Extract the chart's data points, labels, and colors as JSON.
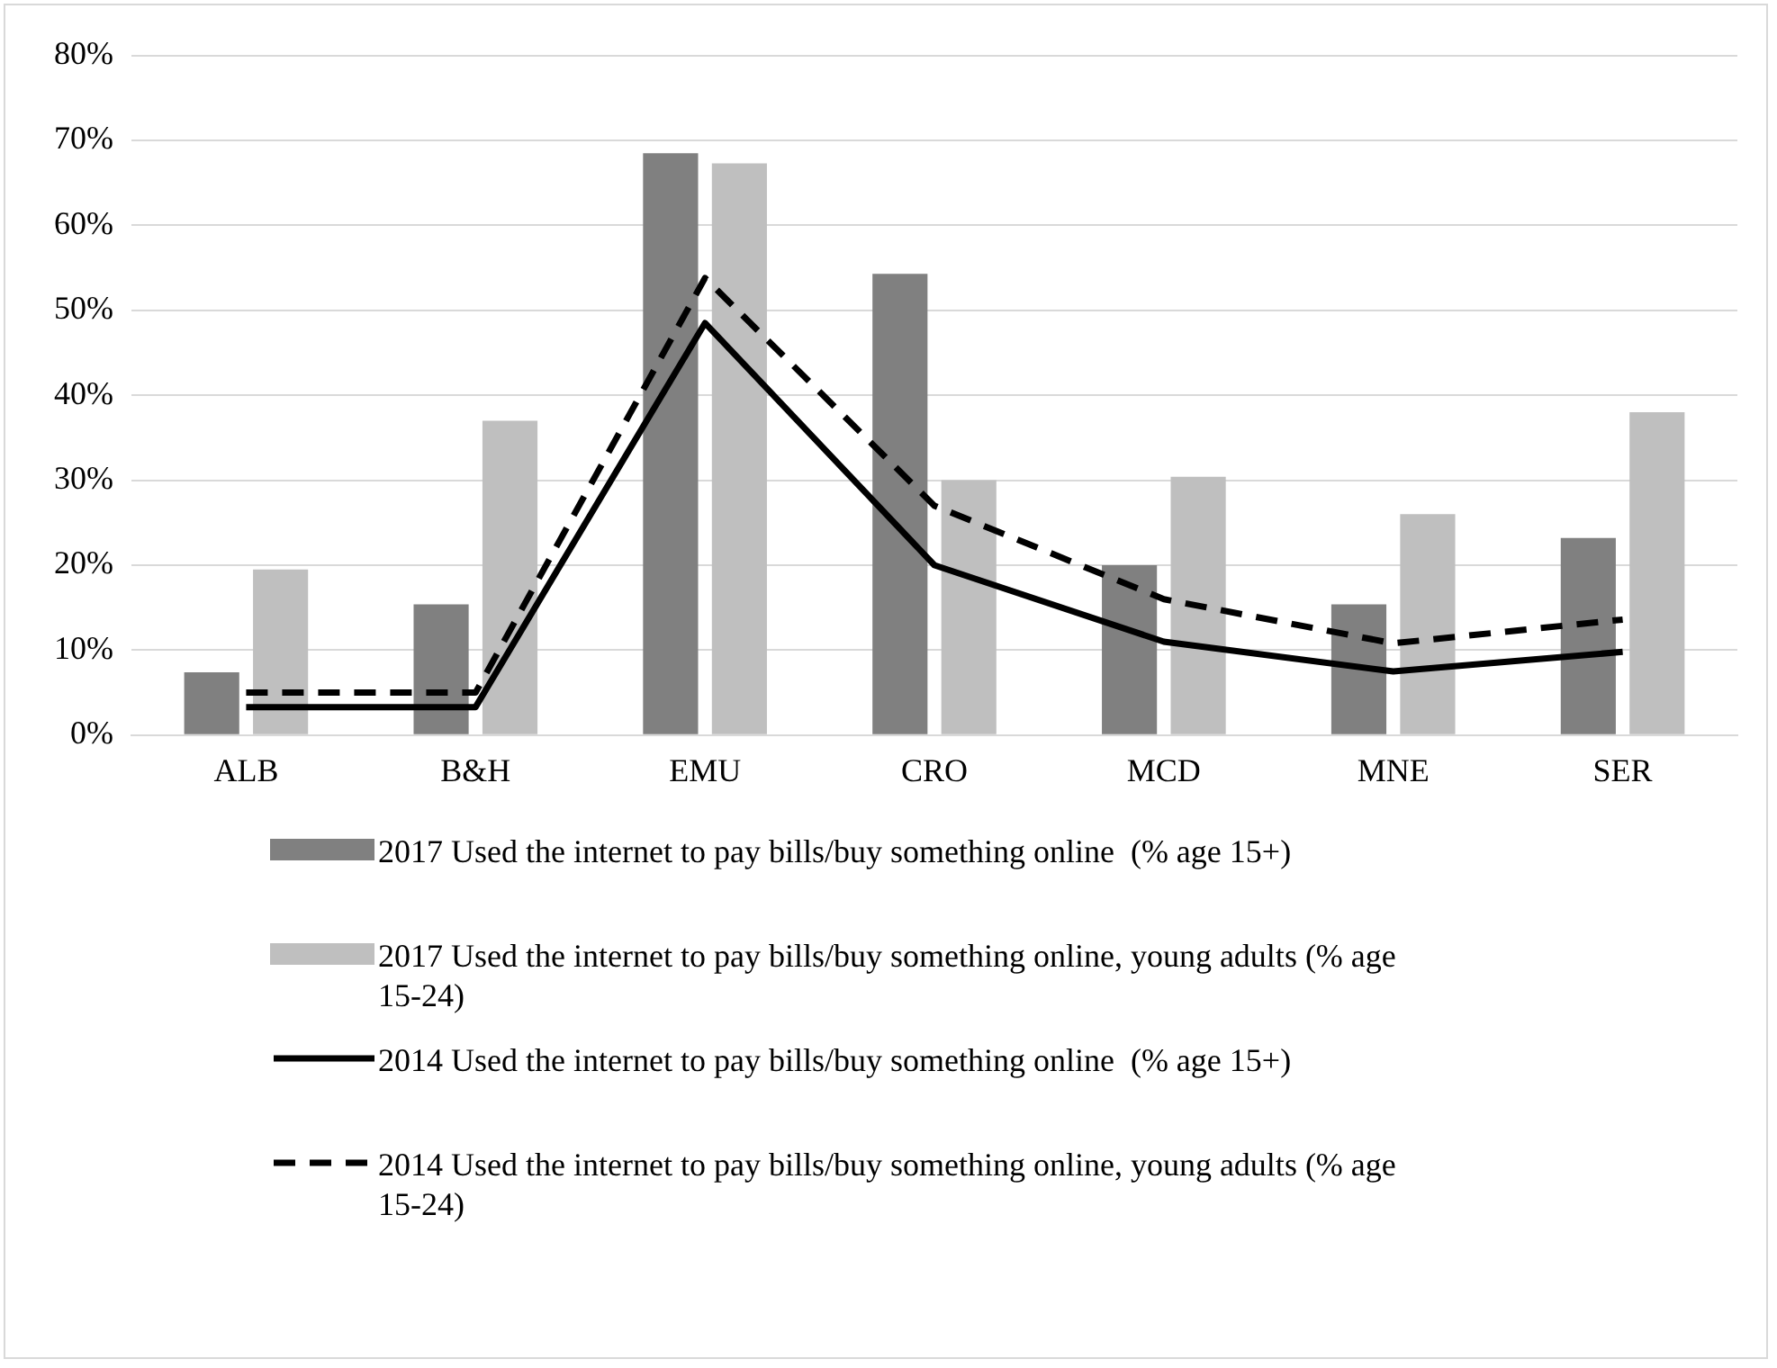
{
  "chart_data": {
    "type": "bar",
    "categories": [
      "ALB",
      "B&H",
      "EMU",
      "CRO",
      "MCD",
      "MNE",
      "SER"
    ],
    "series": [
      {
        "name": "2017 Used the internet to pay bills/buy something online  (% age 15+)",
        "color": "#808080",
        "values": [
          7.4,
          15.4,
          68.5,
          54.3,
          20,
          15.4,
          23.2
        ]
      },
      {
        "name": "2017 Used the internet to pay bills/buy something online, young adults (% age 15-24)",
        "color": "#bfbfbf",
        "values": [
          19.5,
          37,
          67.3,
          30,
          30.4,
          26,
          38
        ]
      },
      {
        "name": "2014 Used the internet to pay bills/buy something online  (% age 15+)",
        "type": "line",
        "color": "#000000",
        "line_style": "solid",
        "values": [
          3.3,
          3.3,
          48.5,
          20,
          11,
          7.5,
          9.8
        ]
      },
      {
        "name": "2014 Used the internet to pay bills/buy something online, young adults (% age 15-24)",
        "type": "line",
        "color": "#000000",
        "line_style": "dashed",
        "values": [
          5,
          5,
          53.8,
          27,
          16,
          10.8,
          13.6
        ]
      }
    ],
    "ylim": [
      0,
      80
    ],
    "yticks": [
      {
        "value": 0,
        "label": "0%"
      },
      {
        "value": 10,
        "label": "10%"
      },
      {
        "value": 20,
        "label": "20%"
      },
      {
        "value": 30,
        "label": "30%"
      },
      {
        "value": 40,
        "label": "40%"
      },
      {
        "value": 50,
        "label": "50%"
      },
      {
        "value": 60,
        "label": "60%"
      },
      {
        "value": 70,
        "label": "70%"
      },
      {
        "value": 80,
        "label": "80%"
      }
    ],
    "grid": "y",
    "legend": "bottom",
    "marker": "none"
  }
}
